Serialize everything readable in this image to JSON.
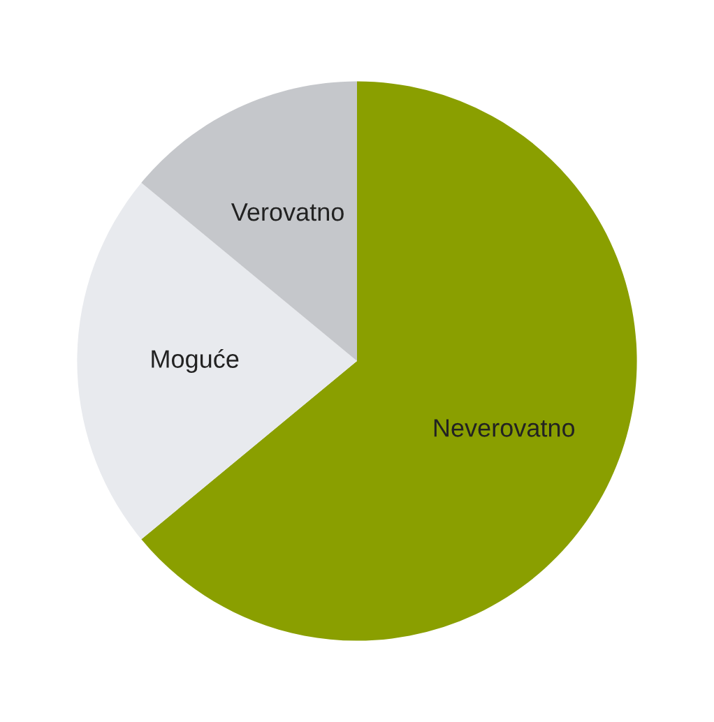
{
  "chart_data": {
    "type": "pie",
    "categories": [
      "Neverovatno",
      "Moguće",
      "Verovatno"
    ],
    "values": [
      64,
      22,
      14
    ],
    "colors": [
      "#8a9f00",
      "#e8eaee",
      "#c5c7cb"
    ],
    "legend": false
  }
}
